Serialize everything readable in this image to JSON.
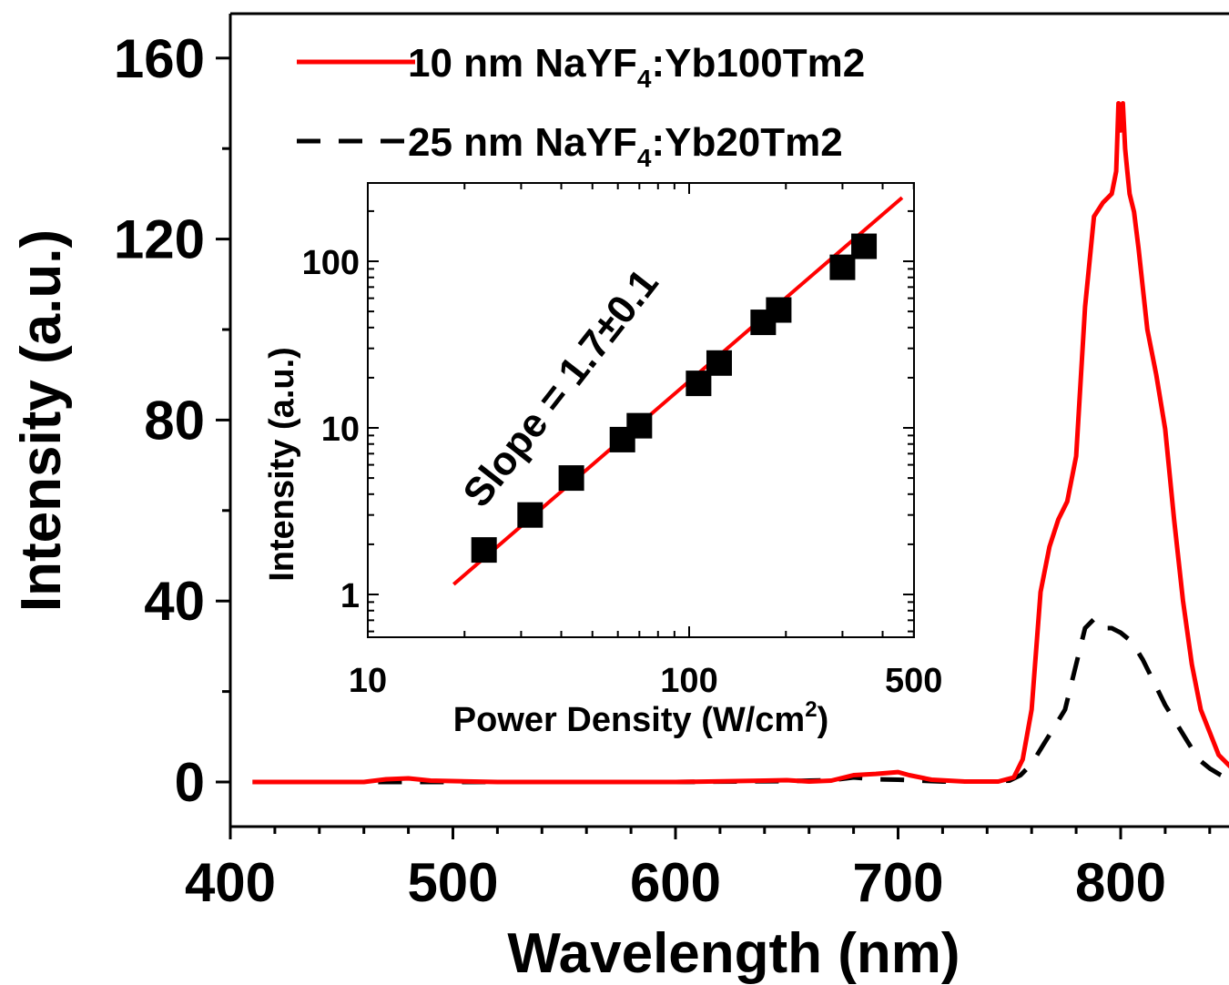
{
  "chart_data": [
    {
      "type": "line",
      "xlabel": "Wavelength (nm)",
      "ylabel": "Intensity (a.u.)",
      "xlim": [
        400,
        850
      ],
      "ylim": [
        -12,
        170
      ],
      "xticks": [
        "400",
        "500",
        "600",
        "700",
        "800"
      ],
      "yticks": [
        "0",
        "40",
        "80",
        "120",
        "160"
      ],
      "legend_position": "top-left",
      "series": [
        {
          "name_prefix": "10 nm NaYF",
          "name_sub": "4",
          "name_suffix": ":Yb100Tm2",
          "color": "#ff0000",
          "style": "solid",
          "x": [
            410,
            460,
            470,
            480,
            490,
            520,
            600,
            640,
            650,
            660,
            670,
            680,
            690,
            700,
            705,
            715,
            730,
            745,
            752,
            756,
            760,
            764,
            768,
            772,
            776,
            780,
            784,
            788,
            792,
            796,
            798,
            799,
            800,
            801,
            802,
            803,
            804,
            806,
            808,
            812,
            816,
            820,
            824,
            828,
            832,
            836,
            840,
            844,
            848,
            850
          ],
          "y": [
            0,
            0,
            0.6,
            0.8,
            0.3,
            0,
            0,
            0.3,
            0.4,
            0.1,
            0.3,
            1.5,
            1.8,
            2.2,
            1.5,
            0.5,
            0.1,
            0.1,
            1,
            5,
            16,
            42,
            52,
            58,
            62,
            72,
            105,
            125,
            128,
            130,
            135,
            150,
            144,
            150,
            140,
            135,
            130,
            126,
            118,
            100,
            90,
            78,
            58,
            40,
            26,
            16,
            11,
            6,
            4,
            3
          ]
        },
        {
          "name_prefix": "25 nm NaYF",
          "name_sub": "4",
          "name_suffix": ":Yb20Tm2",
          "color": "#000000",
          "style": "dashed",
          "x": [
            410,
            500,
            600,
            650,
            670,
            680,
            690,
            700,
            720,
            740,
            750,
            755,
            760,
            765,
            770,
            775,
            780,
            784,
            788,
            790,
            792,
            796,
            800,
            805,
            810,
            815,
            820,
            825,
            830,
            835,
            840,
            845,
            850
          ],
          "y": [
            0,
            0,
            0,
            0.2,
            0.4,
            1.0,
            0.6,
            0.5,
            0.1,
            0.1,
            0.3,
            1.5,
            4,
            8,
            12,
            16,
            26,
            34,
            36,
            35,
            34,
            34,
            33,
            31,
            27,
            22,
            17,
            13,
            9,
            5,
            3,
            1.5,
            0.5
          ]
        }
      ]
    },
    {
      "type": "scatter",
      "scale": "log-log",
      "xlabel_prefix": "Power Density (W/cm",
      "xlabel_sup": "2",
      "xlabel_suffix": ")",
      "ylabel": "Intensity (a.u.)",
      "xlim": [
        10,
        500
      ],
      "ylim": [
        0.6,
        280
      ],
      "xticks": [
        "10",
        "100",
        "500"
      ],
      "yticks": [
        "1",
        "10",
        "100"
      ],
      "annotation": "Slope = 1.7±0.1",
      "points": {
        "x": [
          23,
          32,
          43,
          62,
          70,
          107,
          124,
          170,
          190,
          300,
          350
        ],
        "y": [
          1.85,
          3.0,
          5.0,
          8.5,
          10.3,
          18.5,
          24.5,
          43,
          51,
          92,
          123
        ]
      },
      "fit": {
        "x": [
          18.5,
          460
        ],
        "y": [
          1.15,
          241
        ],
        "color": "#ff0000"
      }
    }
  ]
}
